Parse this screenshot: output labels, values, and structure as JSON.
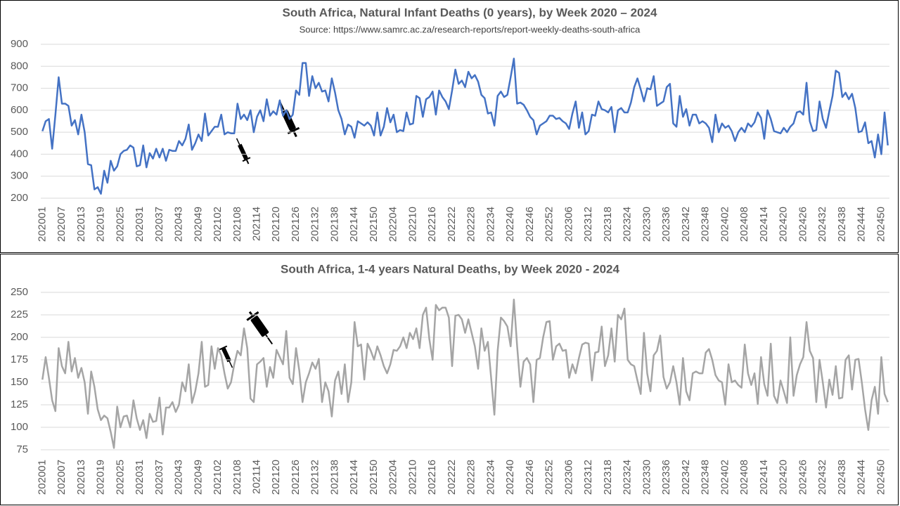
{
  "chart_data": [
    {
      "type": "line",
      "title": "South Africa, Natural Infant Deaths (0 years), by Week 2020 – 2024",
      "subtitle": "Source: https://www.samrc.ac.za/research-reports/report-weekly-deaths-south-africa",
      "ylim": [
        200,
        900
      ],
      "yticks": [
        200,
        300,
        400,
        500,
        600,
        700,
        800,
        900
      ],
      "grid": true,
      "categories": [
        "202001",
        null,
        null,
        null,
        null,
        null,
        "202007",
        null,
        null,
        null,
        null,
        null,
        "202013",
        null,
        null,
        null,
        null,
        null,
        "202019",
        null,
        null,
        null,
        null,
        null,
        "202025",
        null,
        null,
        null,
        null,
        null,
        "202031",
        null,
        null,
        null,
        null,
        null,
        "202037",
        null,
        null,
        null,
        null,
        null,
        "202043",
        null,
        null,
        null,
        null,
        null,
        "202049",
        null,
        null,
        null,
        null,
        null,
        "202102",
        null,
        null,
        null,
        null,
        null,
        "202108",
        null,
        null,
        null,
        null,
        null,
        "202114",
        null,
        null,
        null,
        null,
        null,
        "202120",
        null,
        null,
        null,
        null,
        null,
        "202126",
        null,
        null,
        null,
        null,
        null,
        "202132",
        null,
        null,
        null,
        null,
        null,
        "202138",
        null,
        null,
        null,
        null,
        null,
        "202144",
        null,
        null,
        null,
        null,
        null,
        "202150",
        null,
        null,
        null,
        null,
        null,
        "202204",
        null,
        null,
        null,
        null,
        null,
        "202210",
        null,
        null,
        null,
        null,
        null,
        "202216",
        null,
        null,
        null,
        null,
        null,
        "202222",
        null,
        null,
        null,
        null,
        null,
        "202228",
        null,
        null,
        null,
        null,
        null,
        "202234",
        null,
        null,
        null,
        null,
        null,
        "202240",
        null,
        null,
        null,
        null,
        null,
        "202246",
        null,
        null,
        null,
        null,
        null,
        "202252",
        null,
        null,
        null,
        null,
        null,
        "202306",
        null,
        null,
        null,
        null,
        null,
        "202312",
        null,
        null,
        null,
        null,
        null,
        "202318",
        null,
        null,
        null,
        null,
        null,
        "202324",
        null,
        null,
        null,
        null,
        null,
        "202330",
        null,
        null,
        null,
        null,
        null,
        "202336",
        null,
        null,
        null,
        null,
        null,
        "202342",
        null,
        null,
        null,
        null,
        null,
        "202348",
        null,
        null,
        null,
        null,
        null,
        "202402",
        null,
        null,
        null,
        null,
        null,
        "202408",
        null,
        null,
        null,
        null,
        null,
        "202414",
        null,
        null,
        null,
        null,
        null,
        "202420",
        null,
        null,
        null,
        null,
        null,
        "202426",
        null,
        null,
        null,
        null,
        null,
        "202432",
        null,
        null,
        null,
        null,
        null,
        "202438",
        null,
        null,
        null,
        null,
        null,
        "202444",
        null,
        null,
        null,
        null,
        null,
        "202450",
        null,
        null
      ],
      "series": [
        {
          "color": "#4472c4",
          "values": [
            505,
            550,
            560,
            425,
            580,
            750,
            630,
            630,
            620,
            530,
            555,
            490,
            580,
            500,
            355,
            350,
            240,
            250,
            220,
            325,
            270,
            370,
            325,
            345,
            400,
            415,
            420,
            440,
            430,
            345,
            350,
            440,
            340,
            405,
            380,
            425,
            385,
            425,
            370,
            420,
            415,
            415,
            460,
            440,
            470,
            535,
            420,
            450,
            490,
            460,
            585,
            485,
            505,
            525,
            525,
            580,
            490,
            500,
            495,
            495,
            630,
            560,
            580,
            555,
            600,
            500,
            570,
            600,
            550,
            650,
            575,
            595,
            580,
            645,
            575,
            600,
            560,
            580,
            690,
            670,
            815,
            815,
            665,
            755,
            700,
            725,
            685,
            690,
            640,
            745,
            680,
            600,
            560,
            490,
            535,
            525,
            475,
            550,
            540,
            530,
            545,
            530,
            485,
            590,
            485,
            525,
            610,
            545,
            580,
            500,
            510,
            505,
            590,
            535,
            540,
            665,
            655,
            570,
            650,
            660,
            685,
            580,
            690,
            660,
            640,
            605,
            690,
            785,
            720,
            735,
            705,
            775,
            745,
            760,
            730,
            670,
            655,
            585,
            590,
            530,
            665,
            685,
            660,
            670,
            750,
            835,
            630,
            635,
            625,
            600,
            570,
            555,
            490,
            530,
            540,
            550,
            575,
            575,
            560,
            565,
            550,
            540,
            515,
            585,
            640,
            520,
            590,
            490,
            505,
            580,
            575,
            640,
            605,
            600,
            590,
            615,
            500,
            600,
            610,
            590,
            590,
            635,
            705,
            745,
            695,
            640,
            700,
            695,
            755,
            620,
            630,
            640,
            705,
            720,
            540,
            525,
            665,
            570,
            605,
            530,
            580,
            580,
            540,
            550,
            540,
            520,
            455,
            580,
            500,
            540,
            520,
            530,
            505,
            460,
            500,
            520,
            500,
            540,
            525,
            545,
            590,
            565,
            470,
            600,
            560,
            505,
            500,
            495,
            520,
            500,
            525,
            540,
            590,
            595,
            580,
            725,
            550,
            505,
            510,
            640,
            560,
            520,
            595,
            665,
            780,
            770,
            660,
            680,
            650,
            675,
            610,
            500,
            505,
            545,
            450,
            460,
            385,
            490,
            400,
            590,
            440
          ]
        }
      ]
    },
    {
      "type": "line",
      "title": "South Africa, 1-4 years Natural Deaths, by Week 2020 - 2024",
      "ylim": [
        75,
        250
      ],
      "yticks": [
        75,
        100,
        125,
        150,
        175,
        200,
        225,
        250
      ],
      "grid": true,
      "categories": [
        "202001",
        null,
        null,
        null,
        null,
        null,
        "202007",
        null,
        null,
        null,
        null,
        null,
        "202013",
        null,
        null,
        null,
        null,
        null,
        "202019",
        null,
        null,
        null,
        null,
        null,
        "202025",
        null,
        null,
        null,
        null,
        null,
        "202031",
        null,
        null,
        null,
        null,
        null,
        "202037",
        null,
        null,
        null,
        null,
        null,
        "202043",
        null,
        null,
        null,
        null,
        null,
        "202049",
        null,
        null,
        null,
        null,
        null,
        "202102",
        null,
        null,
        null,
        null,
        null,
        "202108",
        null,
        null,
        null,
        null,
        null,
        "202114",
        null,
        null,
        null,
        null,
        null,
        "202120",
        null,
        null,
        null,
        null,
        null,
        "202126",
        null,
        null,
        null,
        null,
        null,
        "202132",
        null,
        null,
        null,
        null,
        null,
        "202138",
        null,
        null,
        null,
        null,
        null,
        "202144",
        null,
        null,
        null,
        null,
        null,
        "202150",
        null,
        null,
        null,
        null,
        null,
        "202204",
        null,
        null,
        null,
        null,
        null,
        "202210",
        null,
        null,
        null,
        null,
        null,
        "202216",
        null,
        null,
        null,
        null,
        null,
        "202222",
        null,
        null,
        null,
        null,
        null,
        "202228",
        null,
        null,
        null,
        null,
        null,
        "202234",
        null,
        null,
        null,
        null,
        null,
        "202240",
        null,
        null,
        null,
        null,
        null,
        "202246",
        null,
        null,
        null,
        null,
        null,
        "202252",
        null,
        null,
        null,
        null,
        null,
        "202306",
        null,
        null,
        null,
        null,
        null,
        "202312",
        null,
        null,
        null,
        null,
        null,
        "202318",
        null,
        null,
        null,
        null,
        null,
        "202324",
        null,
        null,
        null,
        null,
        null,
        "202330",
        null,
        null,
        null,
        null,
        null,
        "202336",
        null,
        null,
        null,
        null,
        null,
        "202342",
        null,
        null,
        null,
        null,
        null,
        "202348",
        null,
        null,
        null,
        null,
        null,
        "202402",
        null,
        null,
        null,
        null,
        null,
        "202408",
        null,
        null,
        null,
        null,
        null,
        "202414",
        null,
        null,
        null,
        null,
        null,
        "202420",
        null,
        null,
        null,
        null,
        null,
        "202426",
        null,
        null,
        null,
        null,
        null,
        "202432",
        null,
        null,
        null,
        null,
        null,
        "202438",
        null,
        null,
        null,
        null,
        null,
        "202444",
        null,
        null,
        null,
        null,
        null,
        "202450",
        null,
        null
      ],
      "series": [
        {
          "color": "#a5a5a5",
          "values": [
            153,
            178,
            155,
            130,
            118,
            188,
            168,
            160,
            195,
            162,
            177,
            155,
            166,
            150,
            115,
            162,
            145,
            120,
            108,
            113,
            110,
            95,
            77,
            123,
            100,
            112,
            113,
            100,
            130,
            110,
            97,
            108,
            88,
            115,
            106,
            107,
            133,
            92,
            122,
            122,
            128,
            117,
            125,
            150,
            140,
            170,
            127,
            140,
            160,
            195,
            145,
            147,
            190,
            165,
            188,
            180,
            160,
            143,
            150,
            170,
            185,
            180,
            210,
            188,
            132,
            128,
            170,
            173,
            177,
            145,
            167,
            155,
            186,
            178,
            170,
            207,
            155,
            148,
            188,
            163,
            128,
            150,
            160,
            172,
            165,
            176,
            128,
            150,
            140,
            112,
            152,
            162,
            137,
            170,
            128,
            150,
            217,
            190,
            192,
            153,
            193,
            185,
            175,
            190,
            180,
            168,
            160,
            170,
            186,
            185,
            190,
            200,
            188,
            205,
            198,
            210,
            188,
            225,
            233,
            198,
            175,
            236,
            230,
            233,
            233,
            222,
            168,
            224,
            225,
            220,
            205,
            220,
            205,
            190,
            165,
            210,
            185,
            195,
            155,
            114,
            185,
            222,
            218,
            212,
            190,
            242,
            190,
            145,
            173,
            177,
            170,
            128,
            175,
            177,
            200,
            217,
            218,
            175,
            190,
            193,
            185,
            186,
            155,
            170,
            160,
            177,
            192,
            194,
            193,
            152,
            183,
            184,
            212,
            168,
            180,
            210,
            173,
            225,
            220,
            232,
            175,
            170,
            168,
            152,
            137,
            205,
            160,
            140,
            180,
            185,
            202,
            156,
            143,
            150,
            168,
            150,
            125,
            177,
            140,
            130,
            160,
            162,
            160,
            160,
            183,
            187,
            175,
            158,
            152,
            150,
            125,
            170,
            150,
            152,
            147,
            144,
            192,
            160,
            147,
            160,
            126,
            178,
            148,
            135,
            193,
            135,
            127,
            152,
            140,
            127,
            200,
            135,
            158,
            170,
            178,
            217,
            185,
            177,
            128,
            175,
            150,
            122,
            153,
            136,
            168,
            132,
            133,
            175,
            180,
            142,
            175,
            176,
            150,
            120,
            97,
            130,
            145,
            115,
            178,
            137,
            128
          ]
        }
      ]
    }
  ]
}
